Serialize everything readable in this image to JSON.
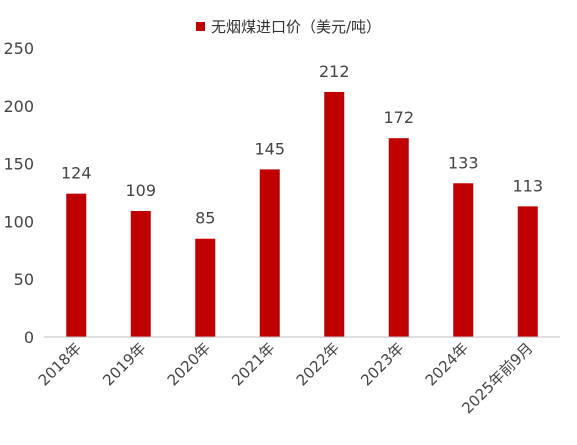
{
  "chart_data": {
    "type": "bar",
    "title": "",
    "xlabel": "",
    "ylabel": "",
    "legend": {
      "position": "top-center",
      "entries": [
        "无烟煤进口价（美元/吨）"
      ]
    },
    "categories": [
      "2018年",
      "2019年",
      "2020年",
      "2021年",
      "2022年",
      "2023年",
      "2024年",
      "2025年前9月"
    ],
    "series": [
      {
        "name": "无烟煤进口价（美元/吨）",
        "values": [
          124,
          109,
          85,
          145,
          212,
          172,
          133,
          113
        ],
        "color": "#c00000"
      }
    ],
    "data_labels": [
      "124",
      "109",
      "85",
      "145",
      "212",
      "172",
      "133",
      "113"
    ],
    "ylim": [
      0,
      250
    ],
    "yticks": [
      0,
      50,
      100,
      150,
      200,
      250
    ],
    "ytick_labels": [
      "0",
      "50",
      "100",
      "150",
      "200",
      "250"
    ],
    "grid": false
  }
}
